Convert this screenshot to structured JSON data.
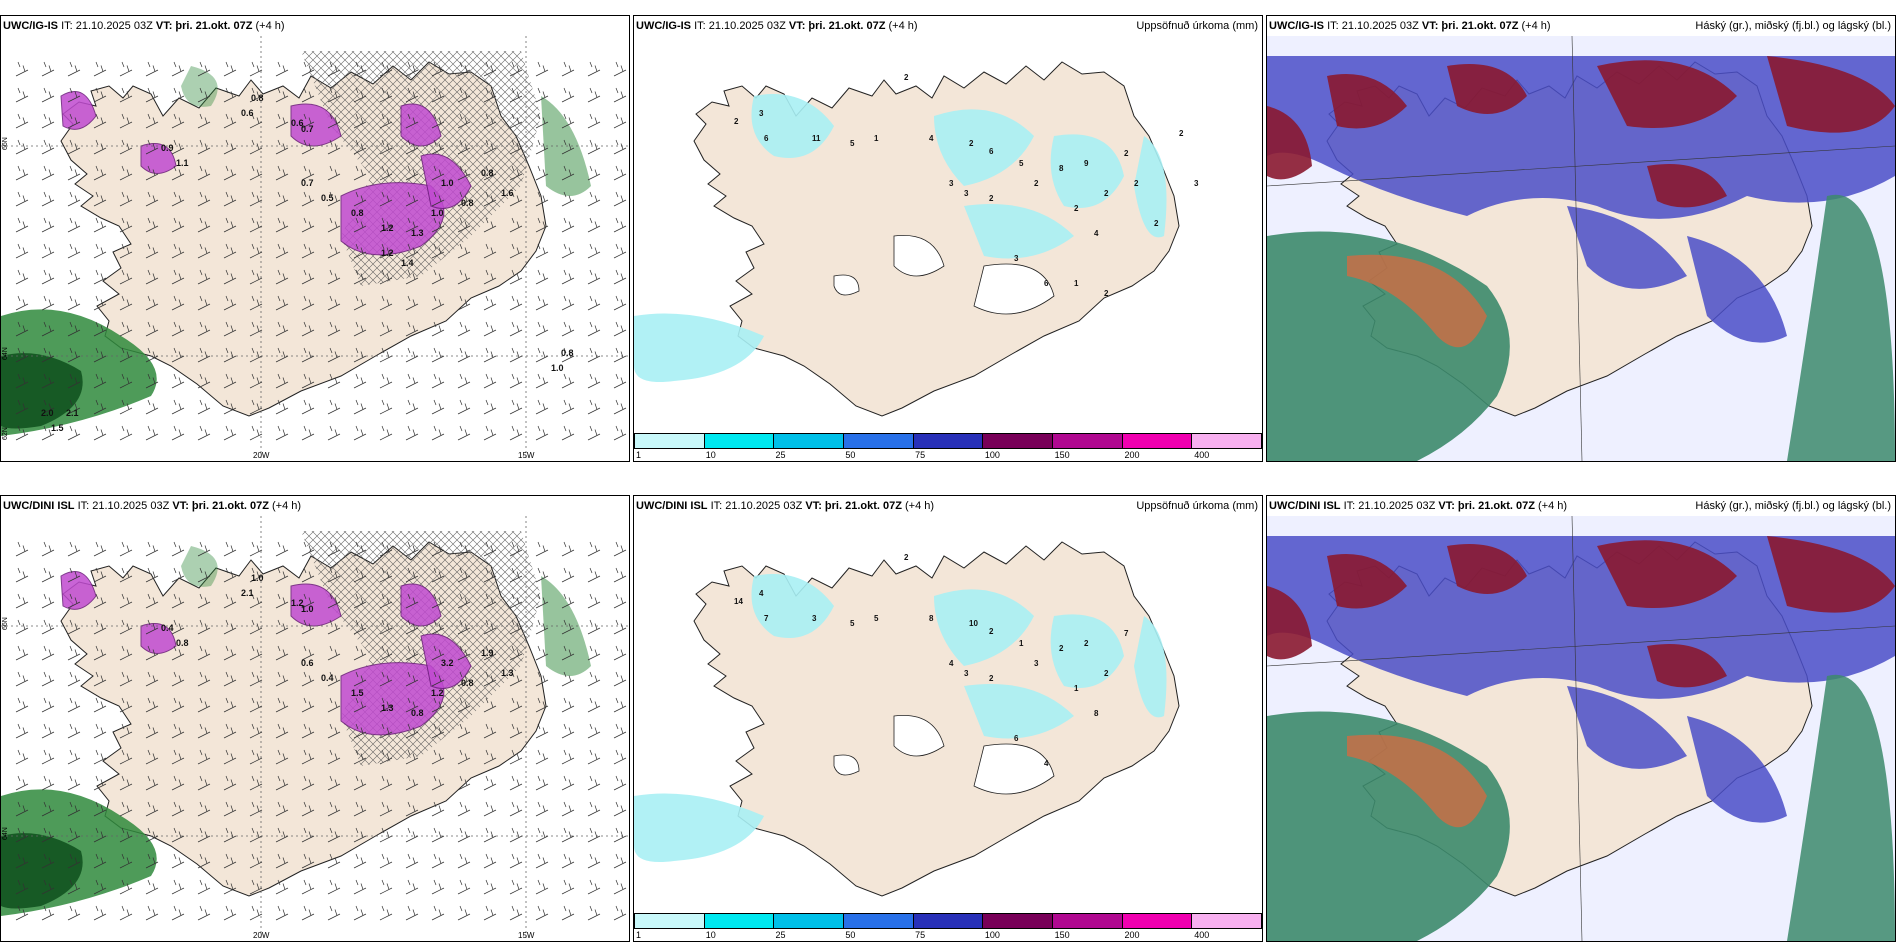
{
  "panels": [
    {
      "model": "UWC/IG-IS",
      "it": "IT: 21.10.2025 03Z",
      "vt": "VT: þri. 21.okt. 07Z",
      "lead": "(+4 h)",
      "right_title": "",
      "lon_labels": [
        "20W",
        "15W"
      ],
      "lat_labels": [
        "66N",
        "64N",
        "62N"
      ],
      "values": [
        "0.8",
        "0.6",
        "0.6",
        "0.7",
        "0.9",
        "1.1",
        "0.7",
        "0.5",
        "0.8",
        "1.2",
        "1.3",
        "1.0",
        "0.8",
        "1.0",
        "0.8",
        "1.6",
        "1.4",
        "1.2",
        "2.0",
        "2.1",
        "1.5",
        "0.8",
        "1.0"
      ]
    },
    {
      "model": "UWC/IG-IS",
      "it": "IT: 21.10.2025 03Z",
      "vt": "VT: þri. 21.okt. 07Z",
      "lead": "(+4 h)",
      "right_title": "Uppsöfnuð úrkoma (mm)",
      "values": [
        "2",
        "2",
        "3",
        "6",
        "11",
        "5",
        "1",
        "4",
        "2",
        "6",
        "5",
        "8",
        "9",
        "2",
        "2",
        "3",
        "3",
        "2",
        "2",
        "2",
        "4",
        "3",
        "6",
        "1",
        "2",
        "2",
        "2",
        "3",
        "2"
      ],
      "colorbar": [
        "1",
        "10",
        "25",
        "50",
        "75",
        "100",
        "150",
        "200",
        "400"
      ]
    },
    {
      "model": "UWC/IG-IS",
      "it": "IT: 21.10.2025 03Z",
      "vt": "VT: þri. 21.okt. 07Z",
      "lead": "(+4 h)",
      "right_title": "Háský (gr.), miðský (fj.bl.) og lágský (bl.)"
    },
    {
      "model": "UWC/DINI ISL",
      "it": "IT: 21.10.2025 03Z",
      "vt": "VT: þri. 21.okt. 07Z",
      "lead": "(+4 h)",
      "right_title": "",
      "lon_labels": [
        "20W",
        "15W"
      ],
      "lat_labels": [
        "66N",
        "64N"
      ],
      "values": [
        "1.0",
        "2.1",
        "1.2",
        "1.0",
        "0.4",
        "0.8",
        "0.6",
        "0.4",
        "1.5",
        "1.3",
        "0.8",
        "1.2",
        "0.8",
        "3.2",
        "1.9",
        "1.3"
      ]
    },
    {
      "model": "UWC/DINI ISL",
      "it": "IT: 21.10.2025 03Z",
      "vt": "VT: þri. 21.okt. 07Z",
      "lead": "(+4 h)",
      "right_title": "Uppsöfnuð úrkoma (mm)",
      "values": [
        "2",
        "14",
        "4",
        "7",
        "3",
        "5",
        "5",
        "8",
        "10",
        "2",
        "1",
        "2",
        "2",
        "2",
        "7",
        "4",
        "3",
        "2",
        "3",
        "1",
        "8",
        "6",
        "4"
      ],
      "colorbar": [
        "1",
        "10",
        "25",
        "50",
        "75",
        "100",
        "150",
        "200",
        "400"
      ]
    },
    {
      "model": "UWC/DINI ISL",
      "it": "IT: 21.10.2025 03Z",
      "vt": "VT: þri. 21.okt. 07Z",
      "lead": "(+4 h)",
      "right_title": "Háský (gr.), miðský (fj.bl.) og lágský (bl.)"
    }
  ],
  "colors": {
    "land": "#f3e6d8",
    "precip_light": "#a8f0f4",
    "precip_purple": "#c04ad0",
    "green": "#2f8a3c",
    "high_cloud_green": "#3c8a6c",
    "mid_cloud_red": "#8a1830",
    "low_cloud_blue": "#4a4ec8",
    "colorbar": [
      "#c8f8fa",
      "#00e8f0",
      "#00c0e8",
      "#2870e8",
      "#2830b8",
      "#780058",
      "#b00890",
      "#f000b0",
      "#f8b0f0"
    ]
  }
}
